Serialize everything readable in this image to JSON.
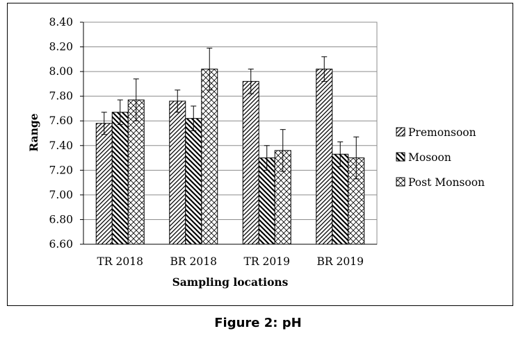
{
  "caption": "Figure 2: pH",
  "chart_data": {
    "type": "bar",
    "title": "",
    "xlabel": "Sampling locations",
    "ylabel": "Range",
    "ylim": [
      6.6,
      8.4
    ],
    "ytick_step": 0.2,
    "yticks": [
      "6.60",
      "6.80",
      "7.00",
      "7.20",
      "7.40",
      "7.60",
      "7.80",
      "8.00",
      "8.20",
      "8.40"
    ],
    "grid": true,
    "legend_position": "right",
    "error_bars": true,
    "categories": [
      "TR 2018",
      "BR 2018",
      "TR 2019",
      "BR 2019"
    ],
    "series": [
      {
        "name": "Premonsoon",
        "pattern": "diagonal-up",
        "values": [
          7.58,
          7.76,
          7.92,
          8.02
        ],
        "errors": [
          0.09,
          0.09,
          0.1,
          0.1
        ]
      },
      {
        "name": "Mosoon",
        "pattern": "diagonal-down",
        "values": [
          7.67,
          7.62,
          7.3,
          7.33
        ],
        "errors": [
          0.1,
          0.1,
          0.1,
          0.1
        ]
      },
      {
        "name": "Post Monsoon",
        "pattern": "crosshatch",
        "values": [
          7.77,
          8.02,
          7.36,
          7.3
        ],
        "errors": [
          0.17,
          0.17,
          0.17,
          0.17
        ]
      }
    ]
  }
}
